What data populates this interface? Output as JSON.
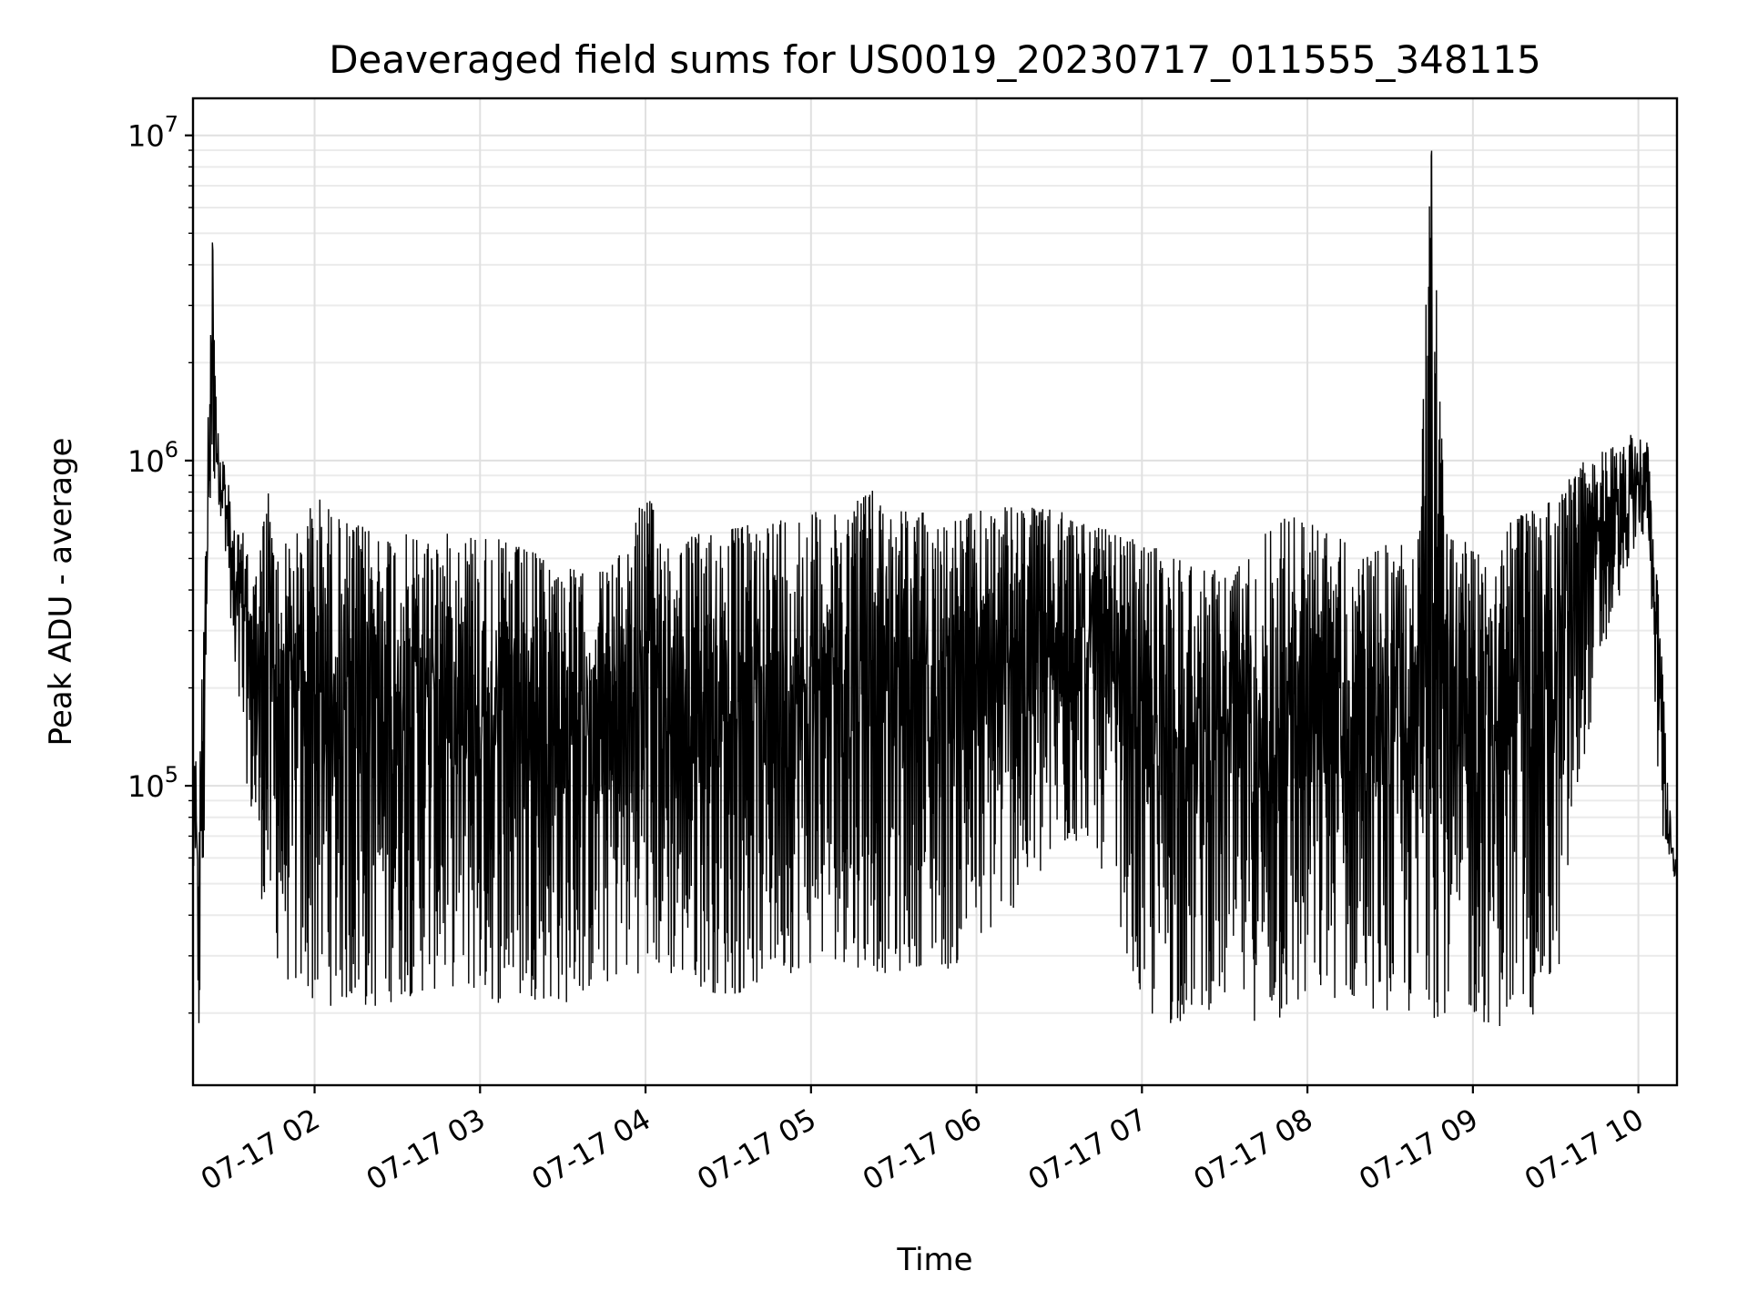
{
  "chart_data": {
    "type": "line",
    "title": "Deaveraged field sums for US0019_20230717_011555_348115",
    "xlabel": "Time",
    "ylabel": "Peak ADU - average",
    "yscale": "log",
    "xlim": [
      "2023-07-17 01:15:55",
      "2023-07-17 10:14:00"
    ],
    "ylim": [
      12000,
      13000000
    ],
    "grid": "major and minor",
    "x_tick_labels": [
      "07-17 02",
      "07-17 03",
      "07-17 04",
      "07-17 05",
      "07-17 06",
      "07-17 07",
      "07-17 08",
      "07-17 09",
      "07-17 10"
    ],
    "x_ticks": [
      "2023-07-17 02:00",
      "2023-07-17 03:00",
      "2023-07-17 04:00",
      "2023-07-17 05:00",
      "2023-07-17 06:00",
      "2023-07-17 07:00",
      "2023-07-17 08:00",
      "2023-07-17 09:00",
      "2023-07-17 10:00"
    ],
    "y_ticks": [
      {
        "value": 100000,
        "base": "10",
        "exp": "5"
      },
      {
        "value": 1000000,
        "base": "10",
        "exp": "6"
      },
      {
        "value": 10000000,
        "base": "10",
        "exp": "7"
      }
    ],
    "series": [
      {
        "color": "#000000",
        "x": [
          "2023-07-17 01:16",
          "2023-07-17 01:18",
          "2023-07-17 01:20",
          "2023-07-17 01:21",
          "2023-07-17 01:23",
          "2023-07-17 01:25",
          "2023-07-17 01:27",
          "2023-07-17 01:29",
          "2023-07-17 01:31",
          "2023-07-17 01:35",
          "2023-07-17 01:39",
          "2023-07-17 01:43",
          "2023-07-17 01:47",
          "2023-07-17 01:51",
          "2023-07-17 01:55",
          "2023-07-17 02:00",
          "2023-07-17 02:10",
          "2023-07-17 02:20",
          "2023-07-17 02:30",
          "2023-07-17 02:40",
          "2023-07-17 02:50",
          "2023-07-17 03:00",
          "2023-07-17 03:10",
          "2023-07-17 03:20",
          "2023-07-17 03:30",
          "2023-07-17 03:40",
          "2023-07-17 03:50",
          "2023-07-17 04:00",
          "2023-07-17 04:10",
          "2023-07-17 04:20",
          "2023-07-17 04:30",
          "2023-07-17 04:40",
          "2023-07-17 04:50",
          "2023-07-17 05:00",
          "2023-07-17 05:10",
          "2023-07-17 05:20",
          "2023-07-17 05:30",
          "2023-07-17 05:40",
          "2023-07-17 05:50",
          "2023-07-17 06:00",
          "2023-07-17 06:10",
          "2023-07-17 06:20",
          "2023-07-17 06:30",
          "2023-07-17 06:40",
          "2023-07-17 06:50",
          "2023-07-17 07:00",
          "2023-07-17 07:10",
          "2023-07-17 07:20",
          "2023-07-17 07:30",
          "2023-07-17 07:40",
          "2023-07-17 07:50",
          "2023-07-17 08:00",
          "2023-07-17 08:10",
          "2023-07-17 08:20",
          "2023-07-17 08:30",
          "2023-07-17 08:40",
          "2023-07-17 08:45",
          "2023-07-17 08:50",
          "2023-07-17 09:00",
          "2023-07-17 09:10",
          "2023-07-17 09:20",
          "2023-07-17 09:30",
          "2023-07-17 09:40",
          "2023-07-17 09:50",
          "2023-07-17 10:00",
          "2023-07-17 10:04",
          "2023-07-17 10:08",
          "2023-07-17 10:12",
          "2023-07-17 10:14"
        ],
        "upper": [
          160000,
          95000,
          400000,
          1200000,
          4800000,
          1250000,
          1100000,
          850000,
          600000,
          600000,
          450000,
          850000,
          500000,
          600000,
          600000,
          800000,
          650000,
          620000,
          600000,
          580000,
          600000,
          600000,
          560000,
          520000,
          480000,
          440000,
          500000,
          800000,
          560000,
          600000,
          620000,
          640000,
          680000,
          700000,
          680000,
          850000,
          720000,
          700000,
          650000,
          700000,
          720000,
          720000,
          700000,
          650000,
          600000,
          560000,
          520000,
          480000,
          450000,
          520000,
          700000,
          650000,
          600000,
          500000,
          560000,
          580000,
          9200000,
          600000,
          580000,
          620000,
          700000,
          800000,
          1000000,
          1100000,
          1250000,
          1150000,
          300000,
          70000,
          60000
        ],
        "lower": [
          50000,
          15000,
          45000,
          400000,
          900000,
          750000,
          600000,
          400000,
          200000,
          110000,
          55000,
          35000,
          28000,
          24000,
          22000,
          21000,
          21000,
          20000,
          22000,
          23000,
          24000,
          22000,
          21000,
          22000,
          21000,
          23000,
          25000,
          27000,
          25000,
          24000,
          22000,
          24000,
          26000,
          28000,
          29000,
          27000,
          26000,
          28000,
          27000,
          30000,
          40000,
          45000,
          60000,
          70000,
          45000,
          19000,
          18000,
          20000,
          21000,
          19000,
          18000,
          20000,
          22000,
          21000,
          20000,
          19000,
          19000,
          20000,
          19000,
          18000,
          19000,
          22000,
          120000,
          300000,
          600000,
          500000,
          70000,
          52000,
          50000
        ]
      }
    ]
  }
}
